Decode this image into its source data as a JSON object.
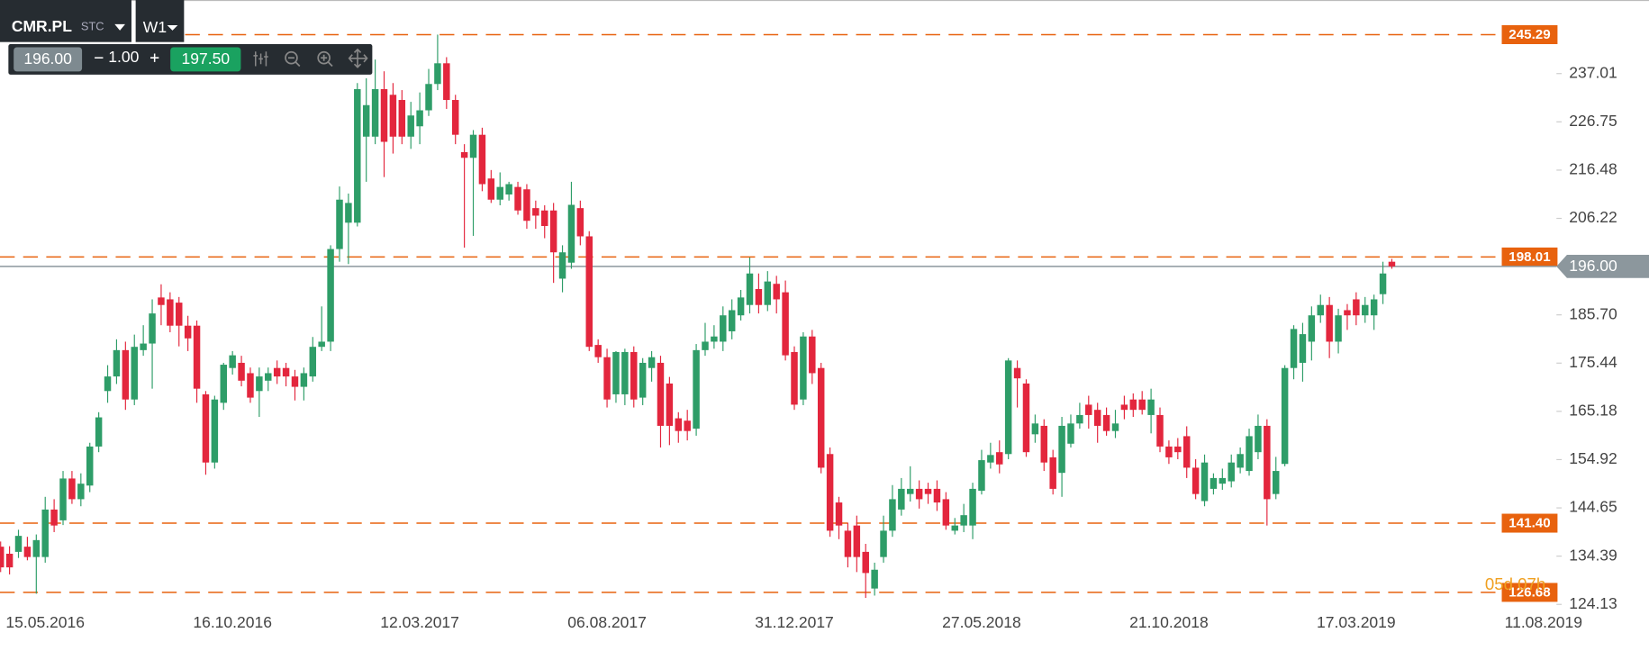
{
  "toolbar": {
    "symbol": "CMR.PL",
    "market": "STC",
    "timeframe": "W1",
    "bid": "196.00",
    "spread": "1.00",
    "ask": "197.50"
  },
  "chart_data": {
    "type": "candlestick",
    "up_color": "#2e9d68",
    "down_color": "#e3263d",
    "level_color": "#e8620e",
    "current_color": "#8c979d",
    "ylim": [
      123.03,
      252.66
    ],
    "yticks": [
      237.01,
      226.75,
      216.48,
      206.22,
      {
        "value": 185.7,
        "label": "185.70"
      },
      175.44,
      165.18,
      154.92,
      144.65,
      134.39,
      124.13
    ],
    "levels": [
      {
        "value": 245.29,
        "label": "245.29"
      },
      {
        "value": 198.01,
        "label": "198.01"
      },
      {
        "value": 141.4,
        "label": "141.40"
      },
      {
        "value": 126.68,
        "label": "126.68"
      }
    ],
    "current": {
      "value": 196,
      "label": "196.00"
    },
    "countdown": "05d 07h",
    "categories": [
      null,
      null,
      null,
      null,
      null,
      "15.05.2016",
      null,
      null,
      null,
      null,
      null,
      null,
      null,
      null,
      null,
      null,
      null,
      null,
      null,
      null,
      null,
      null,
      null,
      null,
      null,
      null,
      "16.10.2016",
      null,
      null,
      null,
      null,
      null,
      null,
      null,
      null,
      null,
      null,
      null,
      null,
      null,
      null,
      null,
      null,
      null,
      null,
      null,
      null,
      "12.03.2017",
      null,
      null,
      null,
      null,
      null,
      null,
      null,
      null,
      null,
      null,
      null,
      null,
      null,
      null,
      null,
      null,
      null,
      null,
      null,
      null,
      "06.08.2017",
      null,
      null,
      null,
      null,
      null,
      null,
      null,
      null,
      null,
      null,
      null,
      null,
      null,
      null,
      null,
      null,
      null,
      null,
      null,
      null,
      "31.12.2017",
      null,
      null,
      null,
      null,
      null,
      null,
      null,
      null,
      null,
      null,
      null,
      null,
      null,
      null,
      null,
      null,
      null,
      null,
      null,
      null,
      "27.05.2018",
      null,
      null,
      null,
      null,
      null,
      null,
      null,
      null,
      null,
      null,
      null,
      null,
      null,
      null,
      null,
      null,
      null,
      null,
      null,
      null,
      "21.10.2018",
      null,
      null,
      null,
      null,
      null,
      null,
      null,
      null,
      null,
      null,
      null,
      null,
      null,
      null,
      null,
      null,
      null,
      null,
      null,
      null,
      "17.03.2019",
      null,
      null,
      null,
      null,
      null,
      null,
      null,
      null,
      null,
      null,
      null,
      null,
      null,
      null,
      null,
      null,
      null,
      null,
      null,
      null,
      "11.08.2019"
    ],
    "ohlc": [
      [
        136.4,
        137.5,
        131.0,
        132.0
      ],
      [
        134.9,
        136.5,
        130.5,
        132.0
      ],
      [
        135.3,
        140.0,
        134.0,
        138.7
      ],
      [
        136.4,
        138.5,
        133.5,
        134.2
      ],
      [
        134.2,
        139.0,
        126.4,
        137.8
      ],
      [
        134.2,
        147.0,
        133.0,
        144.3
      ],
      [
        144.3,
        146.5,
        139.5,
        140.9
      ],
      [
        142.0,
        152.5,
        141.0,
        150.9
      ],
      [
        150.9,
        152.5,
        145.5,
        146.5
      ],
      [
        146.5,
        152.0,
        145.0,
        149.8
      ],
      [
        149.4,
        158.5,
        148.0,
        157.7
      ],
      [
        157.7,
        165.0,
        156.5,
        163.9
      ],
      [
        169.5,
        175.0,
        167.0,
        172.6
      ],
      [
        172.6,
        180.5,
        171.0,
        178.2
      ],
      [
        178.2,
        180.0,
        165.5,
        167.7
      ],
      [
        167.7,
        181.5,
        166.5,
        178.9
      ],
      [
        178.2,
        183.5,
        177.0,
        179.6
      ],
      [
        179.6,
        189.0,
        170.0,
        186.0
      ],
      [
        189.4,
        192.2,
        183.5,
        187.8
      ],
      [
        189.0,
        190.5,
        182.0,
        183.4
      ],
      [
        188.3,
        189.5,
        179.0,
        183.4
      ],
      [
        183.4,
        185.5,
        178.0,
        180.7
      ],
      [
        183.4,
        184.5,
        167.0,
        170.0
      ],
      [
        168.8,
        169.5,
        151.7,
        154.3
      ],
      [
        154.3,
        168.5,
        153.0,
        167.7
      ],
      [
        167.0,
        175.5,
        165.5,
        175.1
      ],
      [
        174.4,
        178.0,
        173.0,
        177.1
      ],
      [
        175.5,
        177.0,
        170.5,
        171.7
      ],
      [
        173.3,
        174.5,
        167.0,
        168.1
      ],
      [
        169.5,
        174.5,
        164.0,
        172.6
      ],
      [
        171.7,
        174.5,
        169.5,
        173.3
      ],
      [
        174.4,
        176.0,
        171.0,
        172.6
      ],
      [
        174.4,
        175.5,
        170.5,
        172.6
      ],
      [
        172.6,
        174.0,
        167.5,
        170.4
      ],
      [
        170.4,
        174.5,
        167.5,
        173.3
      ],
      [
        172.6,
        181.0,
        171.5,
        178.9
      ],
      [
        178.9,
        187.5,
        178.0,
        180.0
      ],
      [
        180.0,
        200.5,
        178.0,
        199.7
      ],
      [
        199.7,
        213.0,
        197.0,
        210.2
      ],
      [
        205.3,
        211.5,
        196.5,
        209.5
      ],
      [
        205.3,
        235.0,
        204.5,
        233.7
      ],
      [
        223.6,
        236.0,
        214.0,
        230.3
      ],
      [
        223.6,
        240.0,
        222.0,
        233.7
      ],
      [
        233.7,
        237.5,
        215.0,
        222.5
      ],
      [
        232.5,
        235.0,
        220.0,
        223.6
      ],
      [
        231.4,
        233.5,
        222.0,
        223.6
      ],
      [
        223.6,
        231.0,
        221.0,
        228.1
      ],
      [
        225.8,
        233.0,
        222.0,
        229.2
      ],
      [
        229.2,
        238.0,
        228.0,
        234.8
      ],
      [
        234.8,
        245.3,
        233.5,
        239.2
      ],
      [
        239.2,
        240.5,
        229.5,
        231.4
      ],
      [
        231.4,
        232.5,
        222.0,
        224.0
      ],
      [
        220.3,
        222.0,
        200.0,
        219.1
      ],
      [
        219.1,
        225.0,
        202.5,
        224.0
      ],
      [
        224.0,
        225.5,
        212.0,
        213.5
      ],
      [
        214.7,
        216.5,
        209.5,
        210.2
      ],
      [
        210.2,
        216.0,
        209.0,
        212.9
      ],
      [
        211.3,
        214.0,
        210.0,
        213.5
      ],
      [
        212.9,
        214.0,
        207.0,
        207.9
      ],
      [
        212.4,
        213.5,
        204.0,
        205.7
      ],
      [
        208.4,
        210.0,
        204.0,
        206.8
      ],
      [
        207.9,
        209.0,
        202.0,
        204.6
      ],
      [
        207.9,
        209.5,
        192.5,
        199.0
      ],
      [
        193.4,
        200.5,
        190.5,
        199.0
      ],
      [
        196.8,
        214.0,
        195.5,
        209.1
      ],
      [
        208.4,
        210.0,
        200.5,
        202.4
      ],
      [
        202.4,
        203.5,
        178.0,
        178.9
      ],
      [
        179.3,
        180.5,
        175.5,
        176.7
      ],
      [
        176.7,
        178.5,
        166.0,
        167.7
      ],
      [
        168.8,
        178.0,
        167.0,
        177.8
      ],
      [
        168.8,
        178.5,
        166.5,
        177.8
      ],
      [
        177.8,
        179.0,
        166.0,
        167.7
      ],
      [
        168.1,
        176.5,
        166.5,
        175.5
      ],
      [
        174.4,
        178.0,
        171.5,
        176.7
      ],
      [
        175.5,
        177.0,
        157.5,
        162.1
      ],
      [
        171.1,
        172.5,
        158.0,
        162.1
      ],
      [
        163.7,
        165.0,
        158.5,
        161.0
      ],
      [
        163.2,
        165.5,
        159.0,
        161.0
      ],
      [
        161.5,
        179.5,
        160.0,
        178.2
      ],
      [
        178.2,
        184.0,
        177.0,
        180.0
      ],
      [
        180.0,
        183.5,
        178.5,
        181.1
      ],
      [
        180.0,
        187.5,
        178.0,
        185.6
      ],
      [
        182.2,
        189.0,
        180.5,
        186.7
      ],
      [
        185.6,
        191.0,
        184.5,
        189.4
      ],
      [
        187.8,
        197.9,
        186.0,
        194.5
      ],
      [
        191.2,
        194.5,
        186.0,
        187.8
      ],
      [
        187.8,
        195.0,
        186.5,
        192.8
      ],
      [
        192.3,
        194.0,
        186.0,
        189.0
      ],
      [
        190.5,
        193.0,
        176.0,
        177.1
      ],
      [
        177.8,
        179.0,
        165.5,
        166.6
      ],
      [
        167.7,
        182.0,
        166.5,
        181.1
      ],
      [
        181.1,
        182.5,
        171.0,
        173.3
      ],
      [
        174.4,
        175.5,
        152.0,
        153.2
      ],
      [
        156.1,
        157.5,
        138.5,
        139.8
      ],
      [
        145.8,
        147.0,
        138.0,
        140.9
      ],
      [
        139.8,
        141.5,
        132.0,
        134.2
      ],
      [
        140.9,
        143.0,
        131.0,
        134.2
      ],
      [
        135.3,
        137.0,
        125.5,
        130.8
      ],
      [
        127.5,
        133.0,
        126.0,
        131.5
      ],
      [
        134.2,
        143.0,
        133.0,
        139.8
      ],
      [
        139.8,
        149.5,
        138.5,
        146.5
      ],
      [
        144.3,
        151.0,
        143.0,
        148.7
      ],
      [
        147.6,
        153.5,
        146.0,
        148.7
      ],
      [
        148.7,
        150.5,
        144.5,
        146.5
      ],
      [
        148.7,
        150.0,
        145.5,
        147.6
      ],
      [
        148.7,
        150.5,
        144.0,
        145.8
      ],
      [
        146.5,
        148.0,
        140.0,
        140.9
      ],
      [
        139.8,
        142.5,
        139.0,
        140.9
      ],
      [
        140.9,
        145.5,
        139.5,
        143.1
      ],
      [
        140.9,
        150.0,
        138.0,
        148.7
      ],
      [
        148.3,
        157.0,
        147.5,
        154.8
      ],
      [
        154.3,
        158.5,
        153.0,
        155.9
      ],
      [
        156.5,
        159.0,
        152.0,
        153.9
      ],
      [
        156.1,
        176.5,
        155.0,
        176.0
      ],
      [
        174.4,
        176.0,
        166.0,
        172.2
      ],
      [
        171.1,
        172.0,
        155.5,
        156.5
      ],
      [
        160.3,
        164.5,
        158.5,
        162.6
      ],
      [
        162.1,
        163.5,
        152.5,
        154.3
      ],
      [
        155.4,
        157.0,
        147.5,
        148.7
      ],
      [
        152.1,
        164.0,
        147.0,
        162.1
      ],
      [
        158.3,
        164.5,
        157.5,
        162.6
      ],
      [
        162.6,
        167.0,
        161.5,
        164.4
      ],
      [
        166.6,
        168.5,
        161.5,
        164.4
      ],
      [
        165.5,
        167.0,
        158.5,
        162.1
      ],
      [
        164.4,
        166.0,
        160.0,
        161.0
      ],
      [
        161.0,
        165.5,
        159.5,
        162.6
      ],
      [
        166.6,
        168.5,
        163.5,
        165.5
      ],
      [
        167.7,
        169.0,
        164.0,
        165.5
      ],
      [
        167.7,
        169.5,
        164.5,
        165.5
      ],
      [
        164.4,
        170.0,
        160.5,
        167.7
      ],
      [
        164.4,
        166.0,
        156.5,
        157.7
      ],
      [
        157.7,
        159.0,
        154.0,
        155.4
      ],
      [
        157.7,
        159.5,
        155.0,
        156.5
      ],
      [
        159.9,
        162.0,
        151.0,
        153.2
      ],
      [
        153.2,
        155.0,
        146.5,
        147.6
      ],
      [
        146.1,
        156.0,
        145.0,
        154.3
      ],
      [
        148.7,
        152.0,
        147.5,
        151.0
      ],
      [
        149.8,
        153.0,
        148.5,
        151.0
      ],
      [
        150.3,
        156.0,
        149.0,
        154.3
      ],
      [
        153.2,
        157.5,
        152.0,
        156.1
      ],
      [
        152.5,
        161.5,
        151.5,
        159.9
      ],
      [
        156.5,
        164.5,
        155.0,
        162.1
      ],
      [
        162.1,
        163.5,
        140.9,
        146.5
      ],
      [
        147.6,
        155.5,
        146.5,
        152.5
      ],
      [
        154.0,
        175.0,
        153.5,
        174.4
      ],
      [
        174.4,
        183.5,
        172.0,
        182.7
      ],
      [
        175.5,
        184.0,
        171.5,
        181.6
      ],
      [
        180.0,
        187.5,
        176.0,
        185.6
      ],
      [
        185.6,
        190.0,
        184.0,
        187.8
      ],
      [
        187.8,
        189.5,
        176.5,
        180.0
      ],
      [
        180.0,
        187.0,
        177.5,
        185.6
      ],
      [
        186.7,
        188.0,
        182.5,
        185.6
      ],
      [
        189.0,
        190.5,
        183.5,
        185.6
      ],
      [
        185.6,
        189.5,
        184.0,
        187.8
      ],
      [
        185.6,
        190.0,
        182.5,
        189.0
      ],
      [
        190.1,
        197.0,
        188.0,
        194.5
      ],
      [
        197.0,
        197.6,
        195.5,
        196.0
      ],
      null,
      null,
      null,
      null,
      null,
      null,
      null,
      null,
      null,
      null,
      null,
      null,
      null,
      null,
      null,
      null,
      null
    ]
  }
}
